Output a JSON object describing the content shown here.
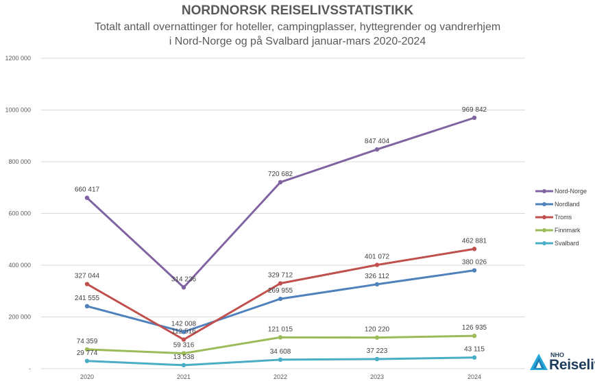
{
  "chart_data": {
    "type": "line",
    "title": "NORDNORSK REISELIVSSTATISTIKK",
    "subtitle_lines": [
      "Totalt antall overnattinger for hoteller, campingplasser, hyttegrender og vandrerhjem",
      "i Nord-Norge og på Svalbard januar-mars 2020-2024"
    ],
    "x": [
      "2020",
      "2021",
      "2022",
      "2023",
      "2024"
    ],
    "ylim": [
      0,
      1200000
    ],
    "y_ticks": [
      {
        "value": 1200000,
        "label": "1200 000"
      },
      {
        "value": 1000000,
        "label": "1000 000"
      },
      {
        "value": 800000,
        "label": "800 000"
      },
      {
        "value": 600000,
        "label": "600 000"
      },
      {
        "value": 400000,
        "label": "400 000"
      },
      {
        "value": 200000,
        "label": "200 000"
      },
      {
        "value": 0,
        "label": "-"
      }
    ],
    "grid": true,
    "legend_position": "right",
    "series": [
      {
        "name": "Nord-Norge",
        "color": "#8064a2",
        "values": [
          660417,
          314236,
          720682,
          847404,
          969842
        ],
        "labels": [
          "660 417",
          "314 236",
          "720 682",
          "847 404",
          "969 842"
        ]
      },
      {
        "name": "Nordland",
        "color": "#4f81bd",
        "values": [
          241555,
          142008,
          269955,
          326112,
          380026
        ],
        "labels": [
          "241 555",
          "142 008",
          "269 955",
          "326 112",
          "380 026"
        ]
      },
      {
        "name": "Troms",
        "color": "#c0504d",
        "values": [
          327044,
          112516,
          329712,
          401072,
          462881
        ],
        "labels": [
          "327 044",
          "112 516",
          "329 712",
          "401 072",
          "462 881"
        ]
      },
      {
        "name": "Finnmark",
        "color": "#9bbb59",
        "values": [
          74359,
          59316,
          121015,
          120220,
          126935
        ],
        "labels": [
          "74 359",
          "59 316",
          "121 015",
          "120 220",
          "126 935"
        ]
      },
      {
        "name": "Svalbard",
        "color": "#4bacc6",
        "values": [
          29774,
          13538,
          34608,
          37223,
          43115
        ],
        "labels": [
          "29 774",
          "13 538",
          "34 608",
          "37 223",
          "43 115"
        ]
      }
    ]
  },
  "brand": {
    "small": "NHO",
    "big": "Reiseliv",
    "color": "#1f3b5a",
    "icon": "nho-logo-icon"
  }
}
